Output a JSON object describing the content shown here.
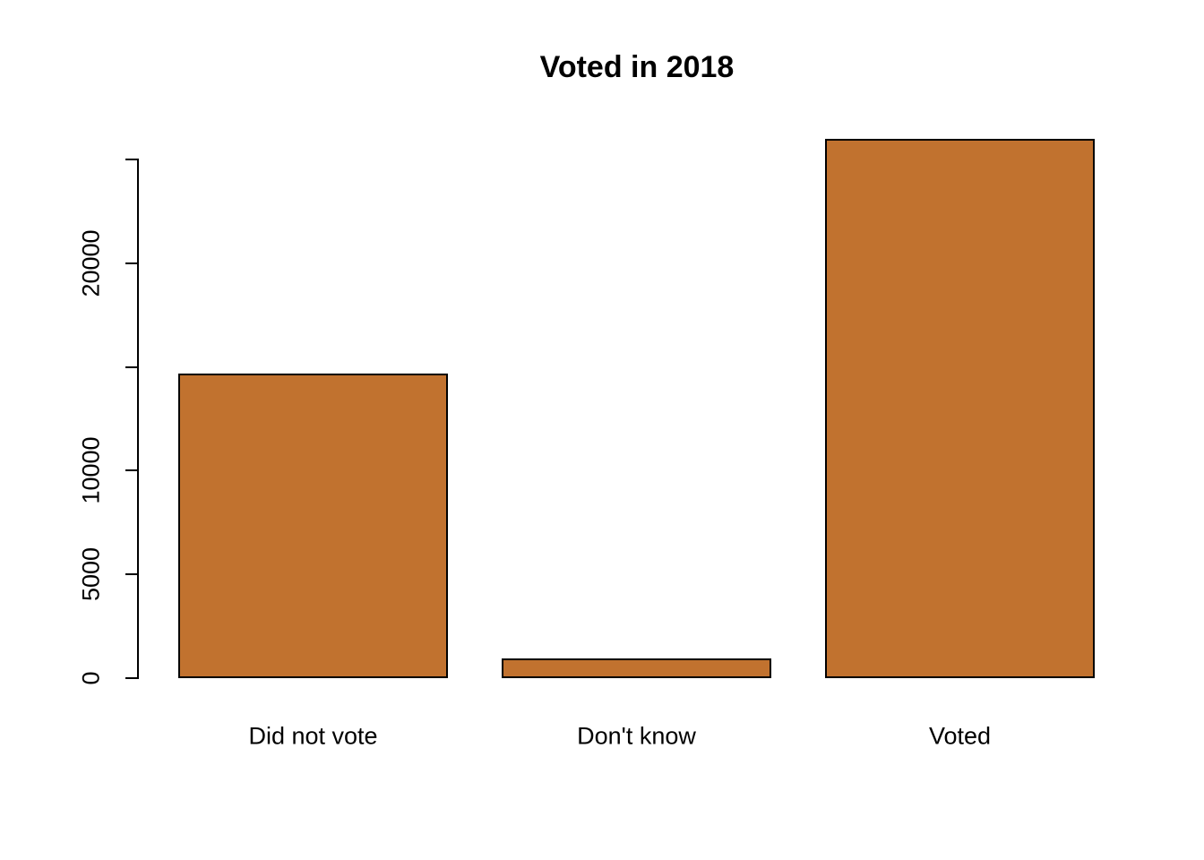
{
  "chart_data": {
    "type": "bar",
    "title": "Voted in 2018",
    "categories": [
      "Did not vote",
      "Don't know",
      "Voted"
    ],
    "values": [
      14700,
      950,
      26000
    ],
    "xlabel": "",
    "ylabel": "",
    "ylim": [
      0,
      26000
    ],
    "yticks": [
      0,
      5000,
      10000,
      15000,
      20000,
      25000
    ],
    "ytick_labels": [
      "0",
      "5000",
      "10000",
      "",
      "20000",
      ""
    ],
    "grid": false,
    "legend": null,
    "bar_color": "#C1722F",
    "bar_border_color": "#000000",
    "axis_color": "#000000",
    "text_color": "#000000",
    "background_color": "#FFFFFF"
  }
}
